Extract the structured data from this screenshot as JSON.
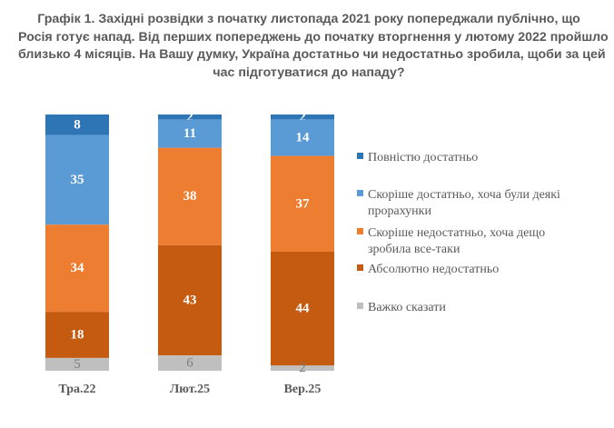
{
  "title_lines": [
    "Графік 1. Західні розвідки з початку листопада 2021 року попереджали публічно, що",
    "Росія готує напад. Від перших попереджень до початку вторгнення у лютому 2022 пройшло",
    "близько 4 місяців. На Вашу думку, Україна достатньо чи недостатньо зробила, щоби за цей",
    "час підготуватися до нападу?"
  ],
  "chart_data": {
    "type": "bar",
    "stacked": true,
    "percent": true,
    "categories": [
      "Тра.22",
      "Лют.25",
      "Вер.25"
    ],
    "series": [
      {
        "name": "Повністю достатньо",
        "color": "#2e75b6",
        "values": [
          8,
          2,
          2
        ]
      },
      {
        "name": "Скоріше достатньо, хоча були деякі прорахунки",
        "color": "#5b9bd5",
        "values": [
          35,
          11,
          14
        ]
      },
      {
        "name": "Скоріше недостатньо, хоча дещо зробила все-таки",
        "color": "#ed7d31",
        "values": [
          34,
          38,
          37
        ]
      },
      {
        "name": "Абсолютно недостатньо",
        "color": "#c55a11",
        "values": [
          18,
          43,
          44
        ]
      },
      {
        "name": "Важко сказати",
        "color": "#bfbfbf",
        "values": [
          5,
          6,
          2
        ]
      }
    ],
    "legend_lines": [
      [
        "Повністю достатньо"
      ],
      [
        "Скоріше достатньо, хоча були деякі",
        "прорахунки"
      ],
      [
        "Скоріше недостатньо, хоча дещо",
        "зробила все-таки"
      ],
      [
        "Абсолютно недостатньо"
      ],
      [
        "Важко сказати"
      ]
    ],
    "legend_position": "right",
    "grid": false
  }
}
